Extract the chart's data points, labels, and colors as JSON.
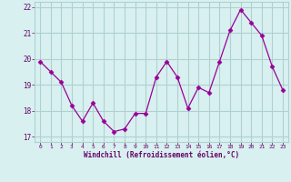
{
  "x": [
    0,
    1,
    2,
    3,
    4,
    5,
    6,
    7,
    8,
    9,
    10,
    11,
    12,
    13,
    14,
    15,
    16,
    17,
    18,
    19,
    20,
    21,
    22,
    23
  ],
  "y": [
    19.9,
    19.5,
    19.1,
    18.2,
    17.6,
    18.3,
    17.6,
    17.2,
    17.3,
    17.9,
    17.9,
    19.3,
    19.9,
    19.3,
    18.1,
    18.9,
    18.7,
    19.9,
    21.1,
    21.9,
    21.4,
    20.9,
    19.7,
    18.8
  ],
  "line_color": "#990099",
  "marker": "D",
  "marker_size": 2.5,
  "bg_color": "#d8f0f0",
  "grid_color": "#b0d0d0",
  "tick_color": "#660066",
  "label_color": "#660066",
  "xlabel": "Windchill (Refroidissement éolien,°C)",
  "ylabel": "",
  "title": "",
  "xlim": [
    -0.5,
    23.5
  ],
  "ylim": [
    16.8,
    22.2
  ],
  "yticks": [
    17,
    18,
    19,
    20,
    21,
    22
  ],
  "xticks": [
    0,
    1,
    2,
    3,
    4,
    5,
    6,
    7,
    8,
    9,
    10,
    11,
    12,
    13,
    14,
    15,
    16,
    17,
    18,
    19,
    20,
    21,
    22,
    23
  ]
}
